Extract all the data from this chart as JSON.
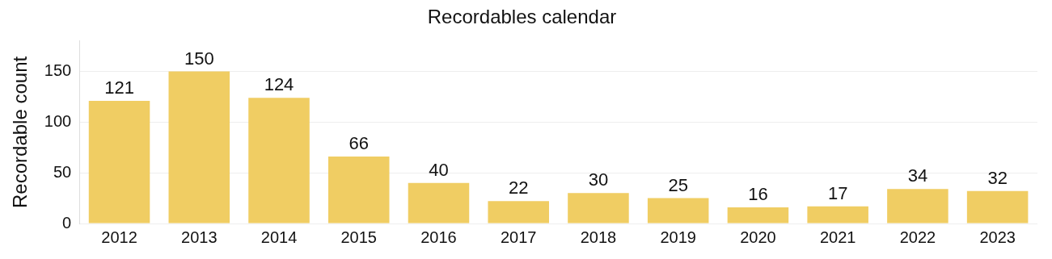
{
  "chart_data": {
    "type": "bar",
    "title": "Recordables calendar",
    "ylabel": "Recordable count",
    "categories": [
      "2012",
      "2013",
      "2014",
      "2015",
      "2016",
      "2017",
      "2018",
      "2019",
      "2020",
      "2021",
      "2022",
      "2023"
    ],
    "values": [
      121,
      150,
      124,
      66,
      40,
      22,
      30,
      25,
      16,
      17,
      34,
      32
    ],
    "color": "#f0cd63",
    "ylim": [
      0,
      180
    ],
    "yticks": [
      0,
      50,
      100,
      150
    ],
    "grid": "y",
    "data_labels": true
  }
}
